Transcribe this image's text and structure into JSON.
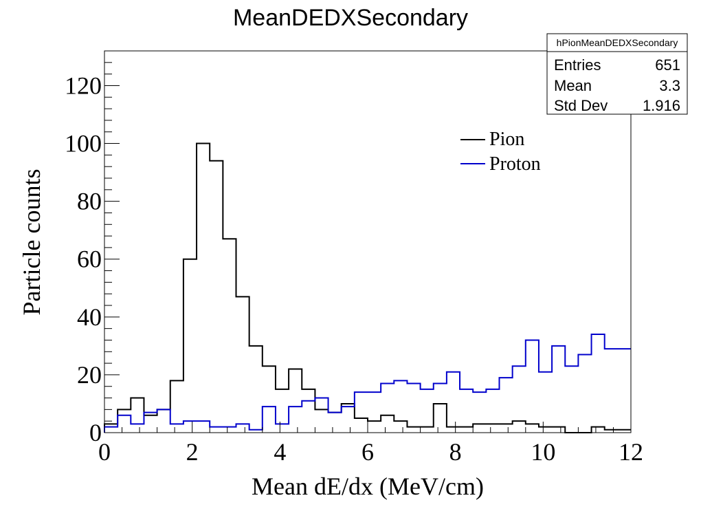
{
  "chart_data": {
    "type": "histogram",
    "title": "MeanDEDXSecondary",
    "xlabel": "Mean dE/dx (MeV/cm)",
    "ylabel": "Particle counts",
    "xlim": [
      0,
      12
    ],
    "ylim": [
      0,
      132
    ],
    "xticks": [
      "0",
      "2",
      "4",
      "6",
      "8",
      "10",
      "12"
    ],
    "yticks": [
      "0",
      "20",
      "40",
      "60",
      "80",
      "100",
      "120"
    ],
    "grid": false,
    "legend_position": "top-right",
    "bin_edges": [
      0,
      0.3,
      0.6,
      0.9,
      1.2,
      1.5,
      1.8,
      2.1,
      2.4,
      2.7,
      3.0,
      3.3,
      3.6,
      3.9,
      4.2,
      4.5,
      4.8,
      5.1,
      5.4,
      5.7,
      6.0,
      6.3,
      6.6,
      6.9,
      7.2,
      7.5,
      7.8,
      8.1,
      8.4,
      8.7,
      9.0,
      9.3,
      9.6,
      9.9,
      10.2,
      10.5,
      10.8,
      11.1,
      11.4,
      12.0
    ],
    "series": [
      {
        "name": "Pion",
        "color": "#000000",
        "values": [
          3,
          8,
          12,
          6,
          8,
          18,
          60,
          100,
          94,
          67,
          47,
          30,
          23,
          15,
          22,
          15,
          8,
          7,
          10,
          5,
          4,
          6,
          4,
          2,
          2,
          10,
          2,
          2,
          3,
          3,
          3,
          4,
          3,
          2,
          2,
          0,
          0,
          2,
          1
        ]
      },
      {
        "name": "Proton",
        "color": "#0000cc",
        "values": [
          2,
          6,
          3,
          7,
          8,
          3,
          4,
          4,
          2,
          2,
          3,
          1,
          9,
          3,
          9,
          11,
          12,
          7,
          9,
          14,
          14,
          17,
          18,
          17,
          15,
          17,
          21,
          15,
          14,
          15,
          19,
          23,
          32,
          21,
          30,
          23,
          27,
          34,
          29
        ]
      }
    ]
  },
  "stats_box": {
    "name": "hPionMeanDEDXSecondary",
    "rows": [
      {
        "label": "Entries",
        "value": "651"
      },
      {
        "label": "Mean",
        "value": "3.3"
      },
      {
        "label": "Std Dev",
        "value": "1.916"
      }
    ]
  }
}
